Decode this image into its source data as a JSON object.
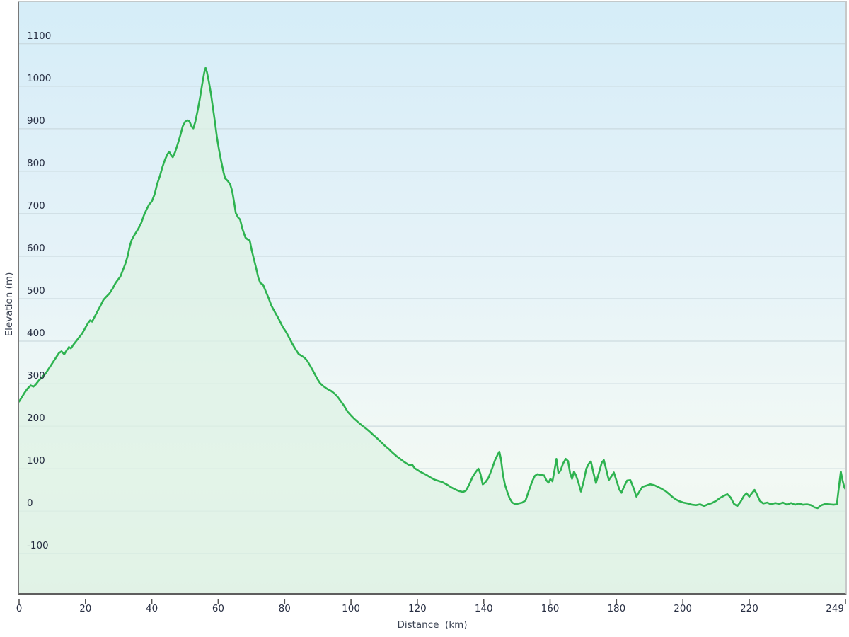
{
  "chart_data": {
    "type": "area",
    "title": "",
    "xlabel": "Distance (km)",
    "xlabel_display": "Distance  (km)",
    "ylabel": "Elevation (m)",
    "x_unit": "km",
    "y_unit": "m",
    "xlim": [
      0,
      249
    ],
    "ylim_displayed": [
      -193,
      1198
    ],
    "grid": true,
    "legend": "none",
    "xticks": [
      0,
      20,
      40,
      60,
      80,
      100,
      120,
      140,
      160,
      180,
      200,
      220,
      249
    ],
    "yticks": [
      -100,
      0,
      100,
      200,
      300,
      400,
      500,
      600,
      700,
      800,
      900,
      1000,
      1100
    ],
    "series_name": "elevation-profile",
    "points": [
      [
        0,
        258
      ],
      [
        0.8,
        268
      ],
      [
        1.6,
        278
      ],
      [
        2.5,
        288
      ],
      [
        3.5,
        296
      ],
      [
        4.3,
        293
      ],
      [
        5,
        298
      ],
      [
        6,
        308
      ],
      [
        7,
        316
      ],
      [
        8,
        324
      ],
      [
        9,
        336
      ],
      [
        10,
        348
      ],
      [
        11,
        360
      ],
      [
        12,
        372
      ],
      [
        12.8,
        376
      ],
      [
        13.6,
        369
      ],
      [
        14.3,
        378
      ],
      [
        15,
        386
      ],
      [
        15.6,
        383
      ],
      [
        16.4,
        392
      ],
      [
        17.2,
        400
      ],
      [
        18,
        408
      ],
      [
        19,
        418
      ],
      [
        20,
        432
      ],
      [
        20.8,
        443
      ],
      [
        21.4,
        449
      ],
      [
        22,
        446
      ],
      [
        22.8,
        458
      ],
      [
        23.6,
        470
      ],
      [
        24.5,
        483
      ],
      [
        25.4,
        497
      ],
      [
        26.3,
        505
      ],
      [
        27.2,
        512
      ],
      [
        28.2,
        524
      ],
      [
        29,
        536
      ],
      [
        29.8,
        545
      ],
      [
        30.5,
        552
      ],
      [
        31.2,
        566
      ],
      [
        32,
        582
      ],
      [
        32.7,
        600
      ],
      [
        33.3,
        622
      ],
      [
        33.9,
        638
      ],
      [
        34.6,
        648
      ],
      [
        35.3,
        657
      ],
      [
        36,
        666
      ],
      [
        36.8,
        678
      ],
      [
        37.6,
        696
      ],
      [
        38.4,
        710
      ],
      [
        39.2,
        722
      ],
      [
        40,
        729
      ],
      [
        40.8,
        745
      ],
      [
        41.6,
        770
      ],
      [
        42.4,
        788
      ],
      [
        43.2,
        810
      ],
      [
        44,
        828
      ],
      [
        44.7,
        840
      ],
      [
        45.2,
        846
      ],
      [
        45.8,
        838
      ],
      [
        46.3,
        833
      ],
      [
        47,
        845
      ],
      [
        47.8,
        864
      ],
      [
        48.6,
        885
      ],
      [
        49.3,
        906
      ],
      [
        50,
        916
      ],
      [
        50.7,
        920
      ],
      [
        51.3,
        918
      ],
      [
        52,
        905
      ],
      [
        52.5,
        901
      ],
      [
        53.1,
        917
      ],
      [
        53.8,
        943
      ],
      [
        54.5,
        972
      ],
      [
        55.2,
        1006
      ],
      [
        55.8,
        1032
      ],
      [
        56.2,
        1043
      ],
      [
        56.6,
        1033
      ],
      [
        57.2,
        1010
      ],
      [
        57.8,
        983
      ],
      [
        58.4,
        950
      ],
      [
        59,
        916
      ],
      [
        59.6,
        880
      ],
      [
        60.2,
        852
      ],
      [
        60.9,
        823
      ],
      [
        61.6,
        797
      ],
      [
        62.1,
        783
      ],
      [
        62.9,
        777
      ],
      [
        63.6,
        769
      ],
      [
        64.2,
        754
      ],
      [
        64.8,
        726
      ],
      [
        65.3,
        701
      ],
      [
        66,
        691
      ],
      [
        66.6,
        686
      ],
      [
        67.3,
        664
      ],
      [
        68.2,
        644
      ],
      [
        68.8,
        640
      ],
      [
        69.5,
        637
      ],
      [
        70.1,
        614
      ],
      [
        70.7,
        595
      ],
      [
        71.4,
        573
      ],
      [
        72.1,
        549
      ],
      [
        72.7,
        537
      ],
      [
        73.5,
        533
      ],
      [
        74.3,
        518
      ],
      [
        75.1,
        503
      ],
      [
        76,
        484
      ],
      [
        77.1,
        468
      ],
      [
        78.2,
        453
      ],
      [
        79.4,
        434
      ],
      [
        80.5,
        421
      ],
      [
        81.4,
        408
      ],
      [
        82.4,
        393
      ],
      [
        83.3,
        381
      ],
      [
        84.2,
        370
      ],
      [
        85.2,
        365
      ],
      [
        86,
        361
      ],
      [
        86.8,
        354
      ],
      [
        87.8,
        341
      ],
      [
        88.8,
        327
      ],
      [
        89.8,
        312
      ],
      [
        90.7,
        301
      ],
      [
        91.7,
        294
      ],
      [
        92.8,
        288
      ],
      [
        94,
        283
      ],
      [
        95,
        277
      ],
      [
        96,
        269
      ],
      [
        97,
        258
      ],
      [
        98,
        247
      ],
      [
        99,
        234
      ],
      [
        99.9,
        226
      ],
      [
        101,
        217
      ],
      [
        102.2,
        209
      ],
      [
        103.4,
        201
      ],
      [
        104.6,
        194
      ],
      [
        105.8,
        186
      ],
      [
        106.9,
        178
      ],
      [
        107.8,
        172
      ],
      [
        109,
        163
      ],
      [
        110.2,
        154
      ],
      [
        111.4,
        146
      ],
      [
        112.6,
        137
      ],
      [
        113.8,
        129
      ],
      [
        115,
        122
      ],
      [
        116,
        116
      ],
      [
        117,
        111
      ],
      [
        117.8,
        107
      ],
      [
        118.4,
        110
      ],
      [
        119.2,
        101
      ],
      [
        120,
        97
      ],
      [
        120.8,
        93
      ],
      [
        121.8,
        89
      ],
      [
        122.8,
        85
      ],
      [
        124,
        79
      ],
      [
        125.2,
        74
      ],
      [
        126.4,
        71
      ],
      [
        127.6,
        68
      ],
      [
        129,
        62
      ],
      [
        130.2,
        56
      ],
      [
        131.4,
        51
      ],
      [
        132.6,
        47
      ],
      [
        133.8,
        45
      ],
      [
        134.6,
        48
      ],
      [
        135.6,
        62
      ],
      [
        136.6,
        80
      ],
      [
        137.6,
        92
      ],
      [
        138.4,
        100
      ],
      [
        139,
        88
      ],
      [
        139.7,
        63
      ],
      [
        140.5,
        68
      ],
      [
        141.4,
        78
      ],
      [
        142.4,
        98
      ],
      [
        143.4,
        120
      ],
      [
        144.2,
        133
      ],
      [
        144.7,
        140
      ],
      [
        145.2,
        122
      ],
      [
        145.8,
        85
      ],
      [
        146.4,
        62
      ],
      [
        147.1,
        45
      ],
      [
        147.8,
        30
      ],
      [
        148.6,
        20
      ],
      [
        149.6,
        16
      ],
      [
        150.6,
        18
      ],
      [
        151.6,
        20
      ],
      [
        152.6,
        25
      ],
      [
        153.6,
        48
      ],
      [
        154.6,
        70
      ],
      [
        155.4,
        83
      ],
      [
        156.2,
        87
      ],
      [
        157.2,
        85
      ],
      [
        158.2,
        84
      ],
      [
        158.9,
        72
      ],
      [
        159.5,
        67
      ],
      [
        160.1,
        76
      ],
      [
        160.7,
        70
      ],
      [
        161.3,
        95
      ],
      [
        161.9,
        123
      ],
      [
        162.5,
        90
      ],
      [
        163.1,
        95
      ],
      [
        163.9,
        112
      ],
      [
        164.7,
        123
      ],
      [
        165.4,
        118
      ],
      [
        166,
        90
      ],
      [
        166.6,
        76
      ],
      [
        167.2,
        93
      ],
      [
        167.8,
        84
      ],
      [
        168.5,
        68
      ],
      [
        169.3,
        46
      ],
      [
        170.1,
        70
      ],
      [
        170.9,
        100
      ],
      [
        171.7,
        112
      ],
      [
        172.3,
        117
      ],
      [
        173,
        92
      ],
      [
        173.8,
        66
      ],
      [
        174.7,
        90
      ],
      [
        175.6,
        115
      ],
      [
        176.2,
        120
      ],
      [
        176.9,
        98
      ],
      [
        177.7,
        73
      ],
      [
        178.5,
        82
      ],
      [
        179.2,
        91
      ],
      [
        180,
        72
      ],
      [
        180.9,
        50
      ],
      [
        181.5,
        43
      ],
      [
        182.3,
        58
      ],
      [
        183.2,
        72
      ],
      [
        184.2,
        73
      ],
      [
        185.1,
        55
      ],
      [
        186,
        34
      ],
      [
        186.9,
        46
      ],
      [
        187.8,
        57
      ],
      [
        189,
        60
      ],
      [
        190.2,
        63
      ],
      [
        191.4,
        61
      ],
      [
        192.5,
        57
      ],
      [
        193.7,
        52
      ],
      [
        194.8,
        47
      ],
      [
        195.9,
        40
      ],
      [
        196.9,
        33
      ],
      [
        198,
        27
      ],
      [
        199,
        23
      ],
      [
        200.2,
        20
      ],
      [
        201.5,
        18
      ],
      [
        202.8,
        15
      ],
      [
        204,
        14
      ],
      [
        205.2,
        16
      ],
      [
        206.4,
        12
      ],
      [
        207.6,
        16
      ],
      [
        208.8,
        19
      ],
      [
        210,
        24
      ],
      [
        211.2,
        31
      ],
      [
        212.4,
        36
      ],
      [
        213.4,
        40
      ],
      [
        214.4,
        32
      ],
      [
        215.4,
        17
      ],
      [
        216.4,
        12
      ],
      [
        217.4,
        22
      ],
      [
        218.4,
        36
      ],
      [
        219.2,
        42
      ],
      [
        220,
        34
      ],
      [
        220.8,
        42
      ],
      [
        221.6,
        50
      ],
      [
        222.4,
        38
      ],
      [
        223.2,
        24
      ],
      [
        224.2,
        18
      ],
      [
        225.4,
        20
      ],
      [
        226.6,
        16
      ],
      [
        227.8,
        19
      ],
      [
        229,
        17
      ],
      [
        230.2,
        20
      ],
      [
        231.4,
        15
      ],
      [
        232.6,
        19
      ],
      [
        233.8,
        15
      ],
      [
        235,
        18
      ],
      [
        236.2,
        15
      ],
      [
        237.4,
        16
      ],
      [
        238.6,
        14
      ],
      [
        239.6,
        9
      ],
      [
        240.6,
        7
      ],
      [
        241.8,
        14
      ],
      [
        243,
        17
      ],
      [
        244.2,
        16
      ],
      [
        245.4,
        15
      ],
      [
        246.4,
        16
      ],
      [
        247,
        55
      ],
      [
        247.6,
        93
      ],
      [
        248.2,
        70
      ],
      [
        248.7,
        55
      ],
      [
        249,
        52
      ]
    ]
  },
  "colors": {
    "line": "#2eb350",
    "area_fill": "#def1e4",
    "area_fill_opacity": 0.75,
    "gridline": "#c6d5da",
    "tick_text": "#272e42",
    "axis_title_text": "#3a4252",
    "plot_bg_top": "#d5edf8",
    "plot_bg_bottom": "#eaf4ec",
    "axis_left_border": "#787878",
    "axis_bottom_border": "#5e5e5e",
    "tick_mark": "#555555"
  }
}
